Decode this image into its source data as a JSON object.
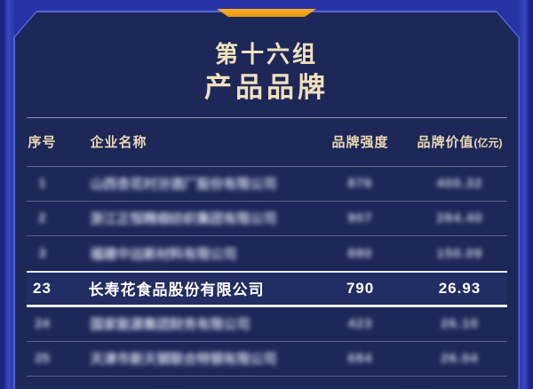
{
  "theme": {
    "background": "#2834a6",
    "panel": "#1d2758",
    "frame_line": "#5466d8",
    "gold": "#f1e1bd",
    "ribbon": "#f7ae28",
    "ribbon_dark": "#e8960f",
    "highlight_border": "#e9eef9",
    "row_text": "#ffffff"
  },
  "header": {
    "group_title": "第十六组",
    "subtitle": "产品品牌"
  },
  "table": {
    "columns": [
      {
        "key": "rank",
        "label": "序号"
      },
      {
        "key": "company",
        "label": "企业名称"
      },
      {
        "key": "strength",
        "label": "品牌强度"
      },
      {
        "key": "value",
        "label": "品牌价值",
        "unit": "(亿元)"
      }
    ],
    "rows": [
      {
        "rank": "1",
        "company": "山西杏花村汾酒厂股份有限公司",
        "strength": "876",
        "value": "400.32",
        "blurred": true,
        "highlighted": false
      },
      {
        "rank": "2",
        "company": "浙江正恒精细纺织集团有限公司",
        "strength": "907",
        "value": "284.40",
        "blurred": true,
        "highlighted": false
      },
      {
        "rank": "3",
        "company": "福建中远新材料有限公司",
        "strength": "880",
        "value": "150.09",
        "blurred": true,
        "highlighted": false
      },
      {
        "rank": "23",
        "company": "长寿花食品股份有限公司",
        "strength": "790",
        "value": "26.93",
        "blurred": false,
        "highlighted": true
      },
      {
        "rank": "24",
        "company": "国家能源集团财务有限公司",
        "strength": "423",
        "value": "26.10",
        "blurred": true,
        "highlighted": false
      },
      {
        "rank": "25",
        "company": "天津市新天钢联合特钢有限公司",
        "strength": "684",
        "value": "26.04",
        "blurred": true,
        "highlighted": false
      }
    ]
  },
  "chart_data": {
    "type": "table",
    "title": "第十六组 产品品牌",
    "columns": [
      "序号",
      "企业名称",
      "品牌强度",
      "品牌价值(亿元)"
    ],
    "rows": [
      [
        "1",
        "山西杏花村汾酒厂股份有限公司",
        876,
        400.32
      ],
      [
        "2",
        "浙江正恒精细纺织集团有限公司",
        907,
        284.4
      ],
      [
        "3",
        "福建中远新材料有限公司",
        880,
        150.09
      ],
      [
        "23",
        "长寿花食品股份有限公司",
        790,
        26.93
      ],
      [
        "24",
        "国家能源集团财务有限公司",
        423,
        26.1
      ],
      [
        "25",
        "天津市新天钢联合特钢有限公司",
        684,
        26.04
      ]
    ],
    "highlighted_row_rank": "23",
    "notes": "rows 1,2,3,24,25 are privacy-blurred in the source image"
  }
}
